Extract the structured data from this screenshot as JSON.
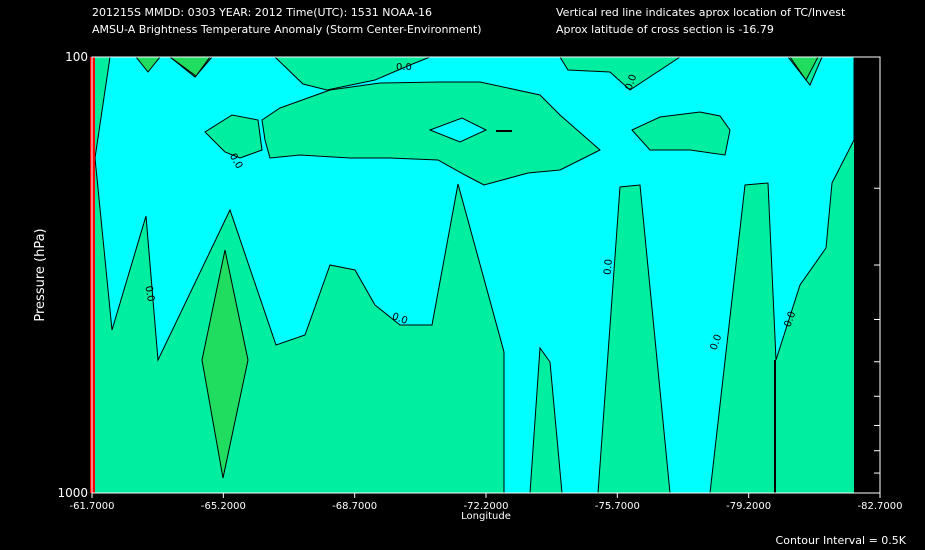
{
  "header": {
    "line1_left": "201215S  MMDD: 0303 YEAR: 2012 Time(UTC): 1531 NOAA-16",
    "line2_left": "AMSU-A Brightness Temperature Anomaly (Storm Center-Environment)",
    "line1_right": "Vertical red line indicates aprox location of TC/Invest",
    "line2_right": "Aprox latitude of cross section is -16.79"
  },
  "footer": {
    "contour_interval": "Contour Interval = 0.5K"
  },
  "colors": {
    "background": "#000000",
    "positive_fill": "#00eea0",
    "strong_positive_fill": "#20dd60",
    "negative_fill": "#00ffff",
    "contour_line": "#000000",
    "tc_marker": "#ff0000"
  },
  "chart_data": {
    "type": "contour",
    "xlabel": "Longitude",
    "ylabel": "Pressure (hPa)",
    "x_ticks": [
      "-61.7000",
      "-65.2000",
      "-68.7000",
      "-72.2000",
      "-75.7000",
      "-79.2000",
      "-82.7000"
    ],
    "x_tick_values": [
      -61.7,
      -65.2,
      -68.7,
      -72.2,
      -75.7,
      -79.2,
      -82.7
    ],
    "y_ticks": [
      "100",
      "1000"
    ],
    "y_tick_values": [
      100,
      1000
    ],
    "xlim": [
      -61.7,
      -82.7
    ],
    "ylim": [
      1000,
      100
    ],
    "y_scale": "log",
    "contour_labels": [
      "0.0",
      "0.0",
      "0.0",
      "0.0",
      "0.0",
      "0.0",
      "0.0",
      "0.0"
    ],
    "tc_marker_longitude": -61.7,
    "grid": false
  }
}
